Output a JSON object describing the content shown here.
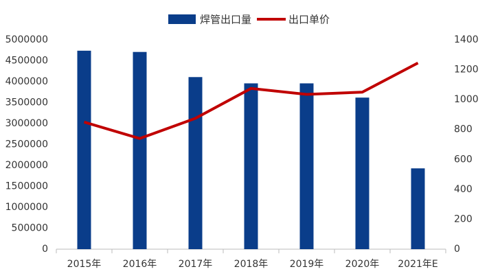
{
  "chart_data": {
    "type": "bar",
    "categories": [
      "2015年",
      "2016年",
      "2017年",
      "2018年",
      "2019年",
      "2020年",
      "2021年E"
    ],
    "series": [
      {
        "name": "焊管出口量",
        "color": "#0a3d8a",
        "values": [
          4740000,
          4710000,
          4110000,
          3960000,
          3960000,
          3620000,
          1930000
        ]
      },
      {
        "name": "出口单价",
        "color": "#c00000",
        "type": "line",
        "axis": "y2",
        "values": [
          850,
          740,
          875,
          1075,
          1035,
          1050,
          1245
        ]
      }
    ],
    "ylim": [
      0,
      5000000
    ],
    "yticks": [
      0,
      500000,
      1000000,
      1500000,
      2000000,
      2500000,
      3000000,
      3500000,
      4000000,
      4500000,
      5000000
    ],
    "y2lim": [
      0,
      1400
    ],
    "y2ticks": [
      0,
      200,
      400,
      600,
      800,
      1000,
      1200,
      1400
    ],
    "legend": "top"
  }
}
